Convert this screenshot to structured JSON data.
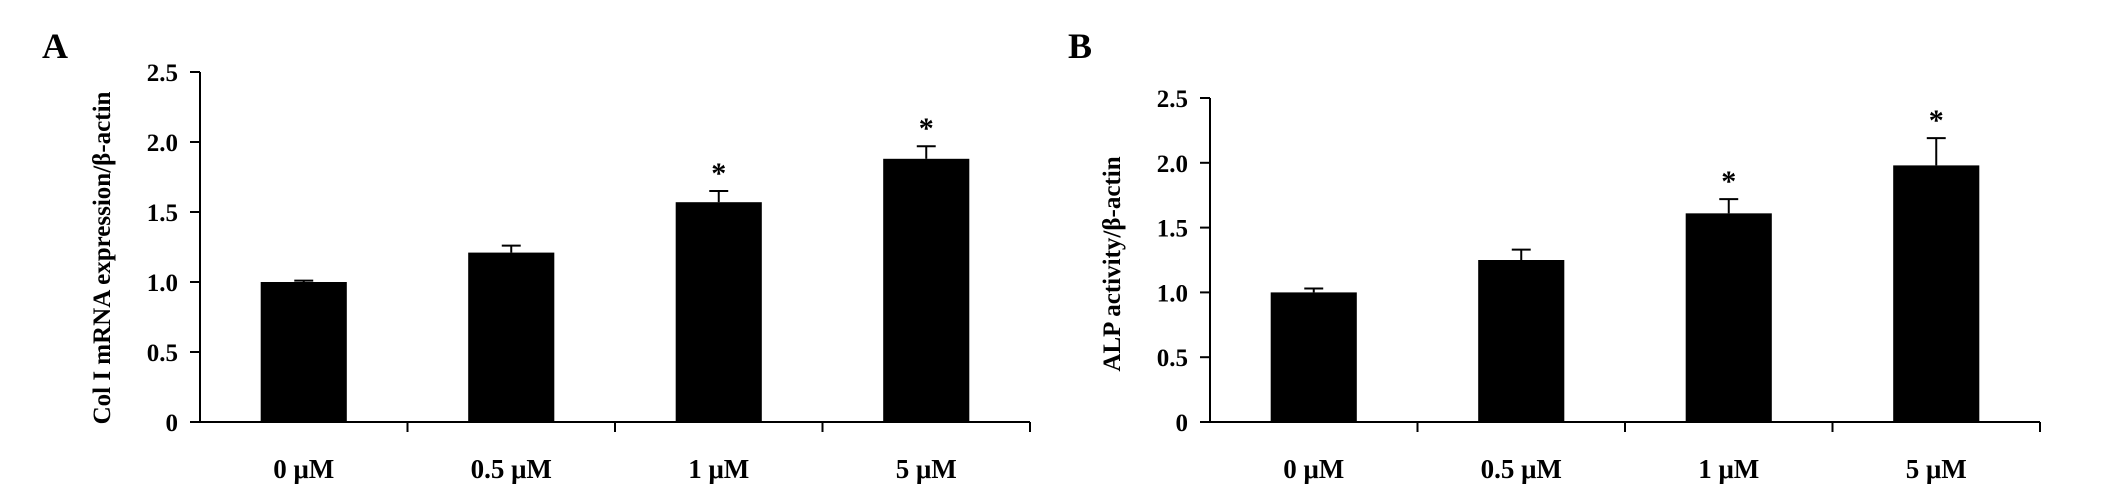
{
  "chart_data": [
    {
      "type": "bar",
      "panel_label": "A",
      "categories": [
        "0 μM",
        "0.5 μM",
        "1 μM",
        "5 μM"
      ],
      "values": [
        1.0,
        1.21,
        1.57,
        1.88
      ],
      "errors": [
        0.01,
        0.05,
        0.08,
        0.09
      ],
      "annotations": [
        "",
        "",
        "*",
        "*"
      ],
      "ylabel": "Col I  mRNA expression/β-actin",
      "xlabel": "",
      "ylim": [
        0,
        2.5
      ],
      "yticks": [
        0,
        0.5,
        1.0,
        1.5,
        2.0,
        2.5
      ],
      "ytick_labels": [
        "0",
        "0.5",
        "1.0",
        "1.5",
        "2.0",
        "2.5"
      ],
      "bar_color": "#000000",
      "grid": false
    },
    {
      "type": "bar",
      "panel_label": "B",
      "categories": [
        "0 μM",
        "0.5 μM",
        "1 μM",
        "5 μM"
      ],
      "values": [
        1.0,
        1.25,
        1.61,
        1.98
      ],
      "errors": [
        0.03,
        0.08,
        0.11,
        0.21
      ],
      "annotations": [
        "",
        "",
        "*",
        "*"
      ],
      "ylabel": "ALP activity/β-actin",
      "xlabel": "",
      "ylim": [
        0,
        2.5
      ],
      "yticks": [
        0,
        0.5,
        1.0,
        1.5,
        2.0,
        2.5
      ],
      "ytick_labels": [
        "0",
        "0.5",
        "1.0",
        "1.5",
        "2.0",
        "2.5"
      ],
      "bar_color": "#000000",
      "grid": false
    }
  ]
}
